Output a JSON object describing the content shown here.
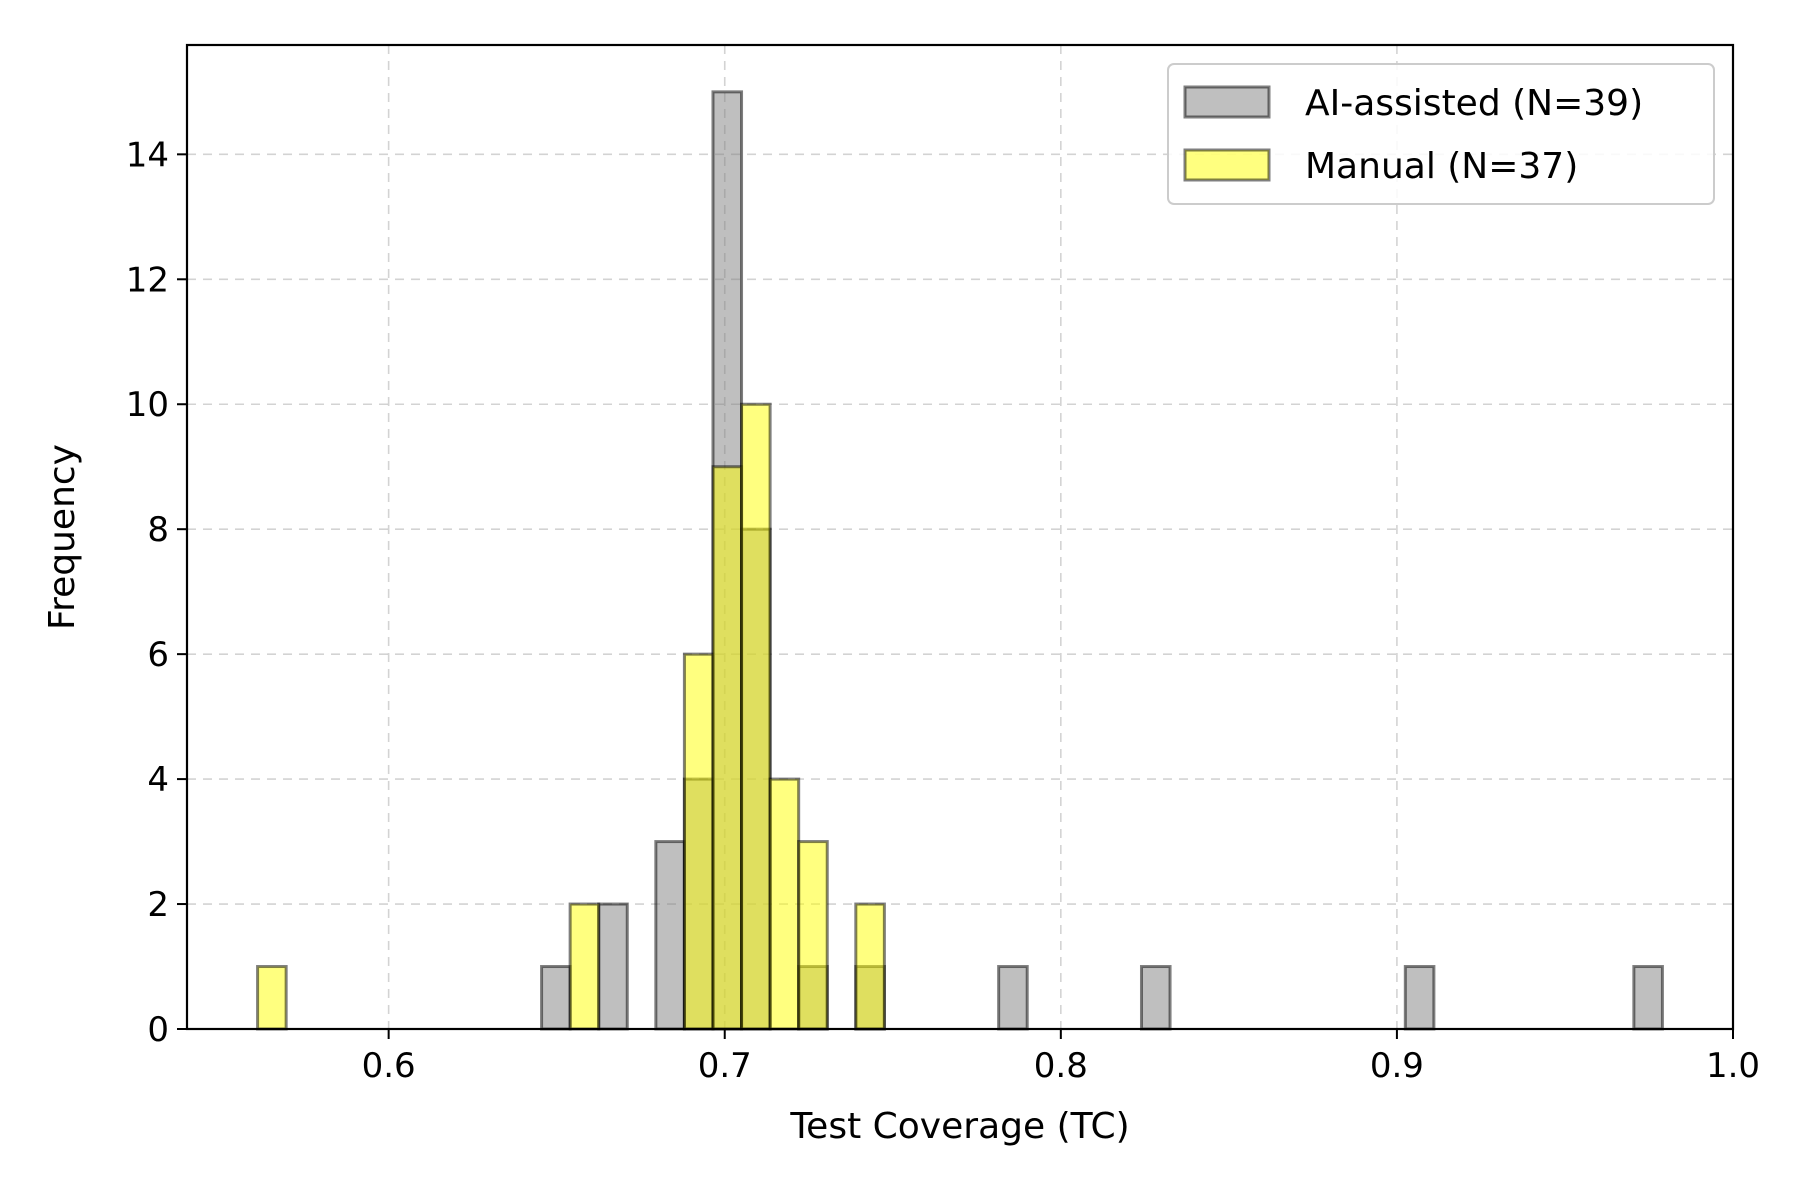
{
  "chart_data": {
    "type": "bar",
    "title": "",
    "xlabel": "Test Coverage (TC)",
    "ylabel": "Frequency",
    "xlim": [
      0.54,
      1.0
    ],
    "ylim": [
      0,
      15.75
    ],
    "xticks": [
      0.6,
      0.7,
      0.8,
      0.9,
      1.0
    ],
    "xtick_labels": [
      "0.6",
      "0.7",
      "0.8",
      "0.9",
      "1.0"
    ],
    "yticks": [
      0,
      2,
      4,
      6,
      8,
      10,
      12,
      14
    ],
    "ytick_labels": [
      "0",
      "2",
      "4",
      "6",
      "8",
      "10",
      "12",
      "14"
    ],
    "grid": true,
    "legend_position": "top-right",
    "series": [
      {
        "name": "AI-assisted (N=39)",
        "color": "#808080",
        "bins": [
          {
            "x0": 0.6455,
            "x1": 0.654,
            "count": 1
          },
          {
            "x0": 0.6625,
            "x1": 0.671,
            "count": 2
          },
          {
            "x0": 0.6795,
            "x1": 0.688,
            "count": 3
          },
          {
            "x0": 0.688,
            "x1": 0.6965,
            "count": 4
          },
          {
            "x0": 0.6965,
            "x1": 0.705,
            "count": 15
          },
          {
            "x0": 0.705,
            "x1": 0.7135,
            "count": 8
          },
          {
            "x0": 0.722,
            "x1": 0.7305,
            "count": 1
          },
          {
            "x0": 0.739,
            "x1": 0.7475,
            "count": 1
          },
          {
            "x0": 0.7815,
            "x1": 0.79,
            "count": 1
          },
          {
            "x0": 0.824,
            "x1": 0.8325,
            "count": 1
          },
          {
            "x0": 0.9025,
            "x1": 0.911,
            "count": 1
          },
          {
            "x0": 0.9705,
            "x1": 0.979,
            "count": 1
          }
        ]
      },
      {
        "name": "Manual (N=37)",
        "color": "#ffff00",
        "bins": [
          {
            "x0": 0.561,
            "x1": 0.5695,
            "count": 1
          },
          {
            "x0": 0.654,
            "x1": 0.6625,
            "count": 2
          },
          {
            "x0": 0.688,
            "x1": 0.6965,
            "count": 6
          },
          {
            "x0": 0.6965,
            "x1": 0.705,
            "count": 9
          },
          {
            "x0": 0.705,
            "x1": 0.7135,
            "count": 10
          },
          {
            "x0": 0.7135,
            "x1": 0.722,
            "count": 4
          },
          {
            "x0": 0.722,
            "x1": 0.7305,
            "count": 3
          },
          {
            "x0": 0.739,
            "x1": 0.7475,
            "count": 2
          }
        ]
      }
    ]
  }
}
